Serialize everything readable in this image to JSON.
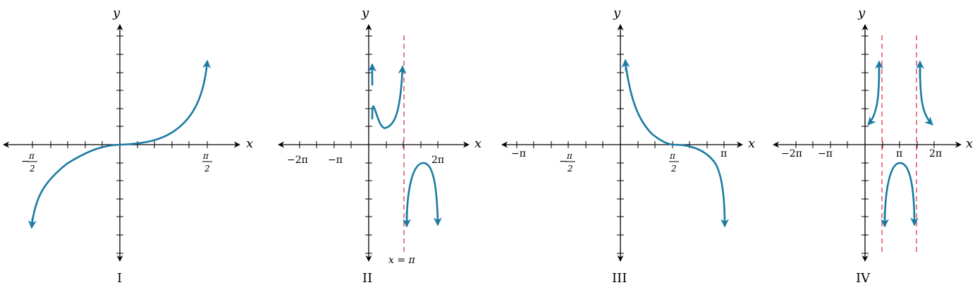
{
  "colors": {
    "curve": "#1a7aa3",
    "asymptote": "#e0353f",
    "axes": "#000000"
  },
  "panels": [
    {
      "roman": "I",
      "axis_x": "x",
      "axis_y": "y",
      "tick_labels": {
        "left_num": "π",
        "left_den": "2",
        "left_sign": "−",
        "right_num": "π",
        "right_den": "2"
      }
    },
    {
      "roman": "II",
      "axis_x": "x",
      "axis_y": "y",
      "tick_labels": [
        "−2π",
        "−π",
        "2π"
      ],
      "asymptote_label": "x = π"
    },
    {
      "roman": "III",
      "axis_x": "x",
      "axis_y": "y",
      "tick_labels": {
        "neg_pi": "−π",
        "neg_half_num": "π",
        "neg_half_den": "2",
        "neg_half_sign": "−",
        "pos_half_num": "π",
        "pos_half_den": "2",
        "pi": "π"
      }
    },
    {
      "roman": "IV",
      "axis_x": "x",
      "axis_y": "y",
      "tick_labels": [
        "−2π",
        "−π",
        "π",
        "2π"
      ]
    }
  ]
}
